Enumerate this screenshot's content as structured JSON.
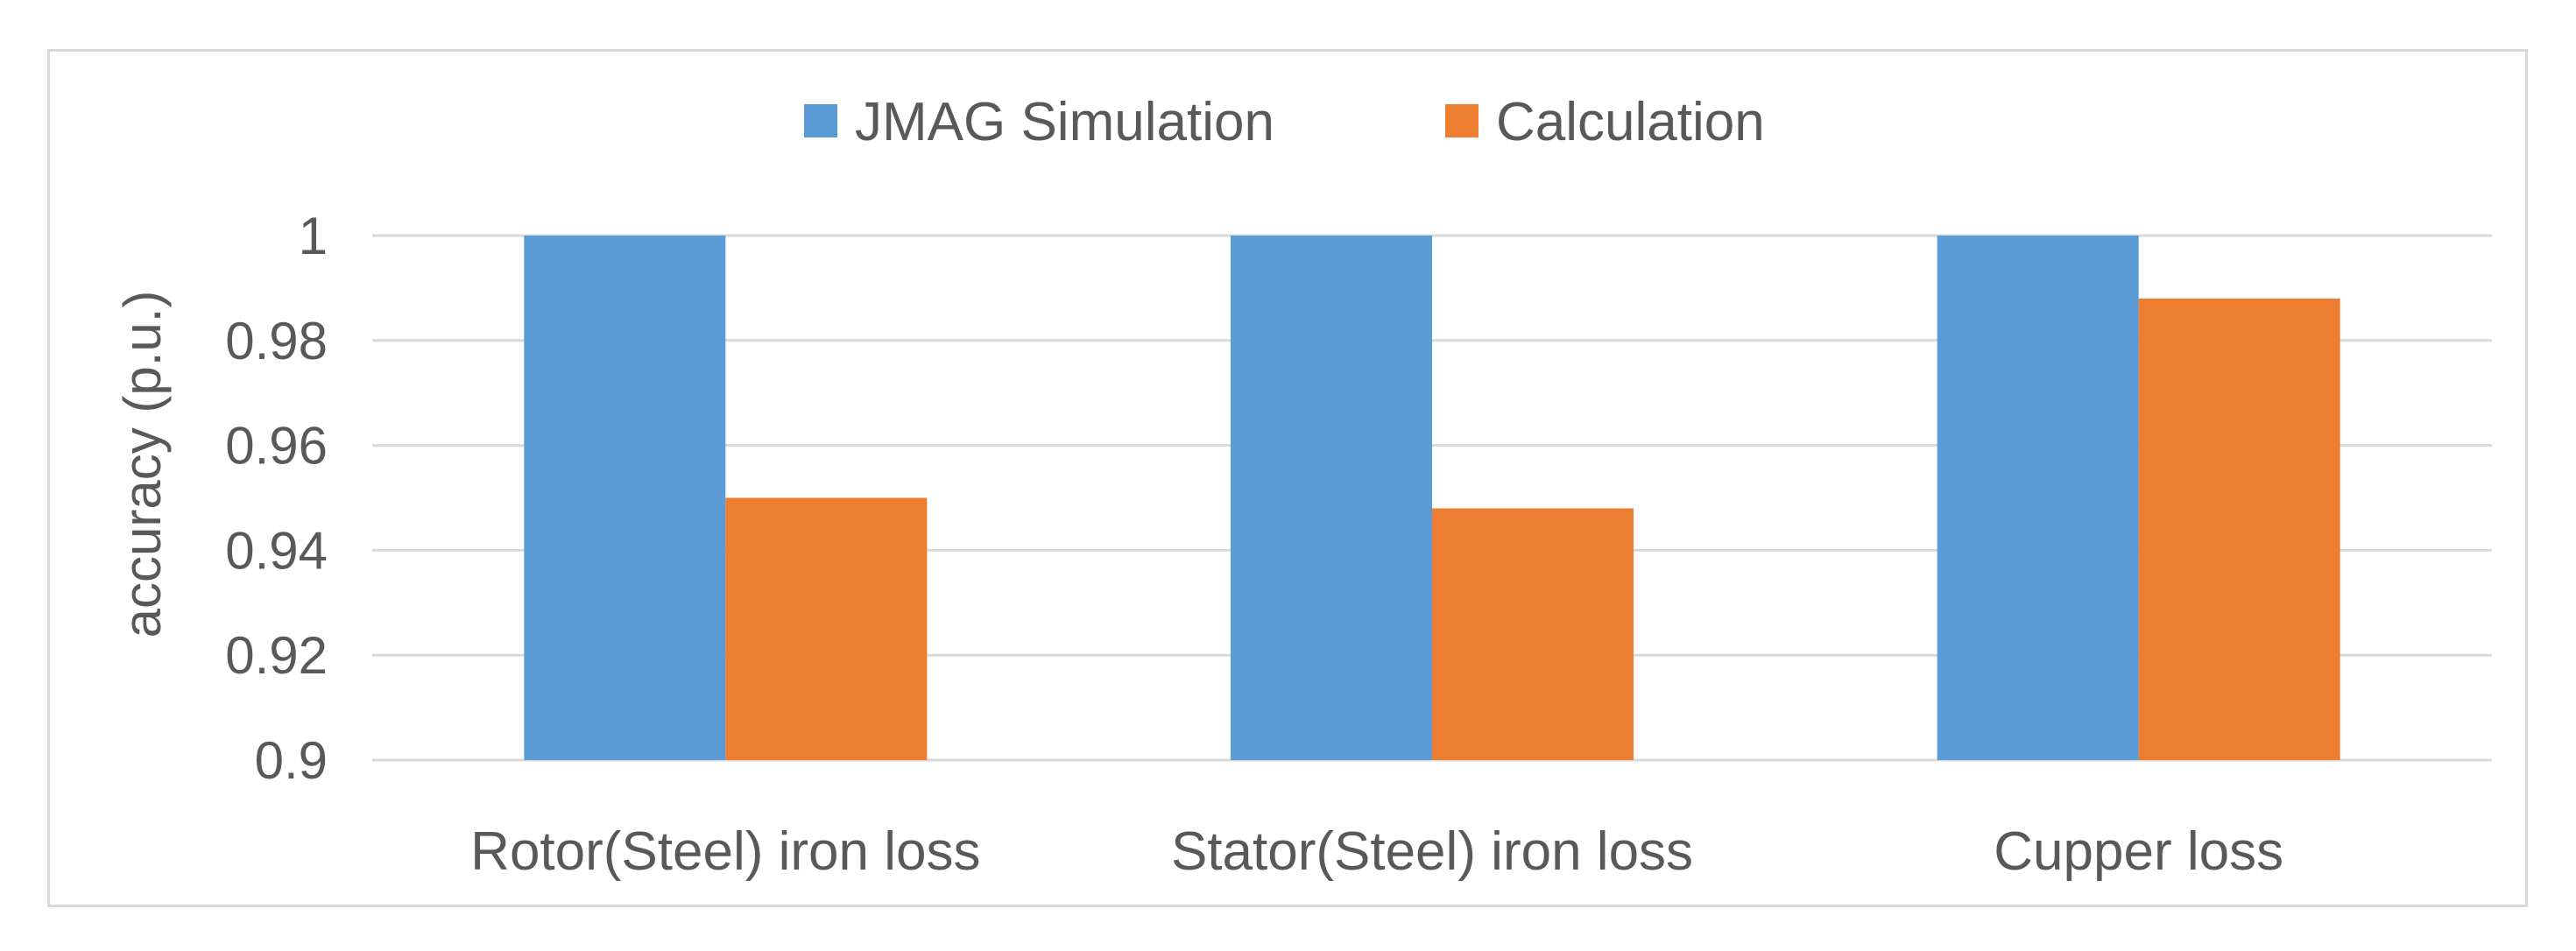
{
  "chart_data": {
    "type": "bar",
    "title": "",
    "xlabel": "",
    "ylabel": "accuracy  (p.u.)",
    "ylim": [
      0.9,
      1.0
    ],
    "yticks": [
      0.9,
      0.92,
      0.94,
      0.96,
      0.98,
      1
    ],
    "ytick_labels": [
      "0.9",
      "0.92",
      "0.94",
      "0.96",
      "0.98",
      "1"
    ],
    "grid": true,
    "legend_position": "top",
    "categories": [
      "Rotor(Steel) iron loss",
      "Stator(Steel) iron loss",
      "Cupper loss"
    ],
    "series": [
      {
        "name": "JMAG Simulation",
        "color": "#5B9BD5",
        "values": [
          1.0,
          1.0,
          1.0
        ]
      },
      {
        "name": "Calculation",
        "color": "#ED7D31",
        "values": [
          0.95,
          0.948,
          0.988
        ]
      }
    ]
  }
}
